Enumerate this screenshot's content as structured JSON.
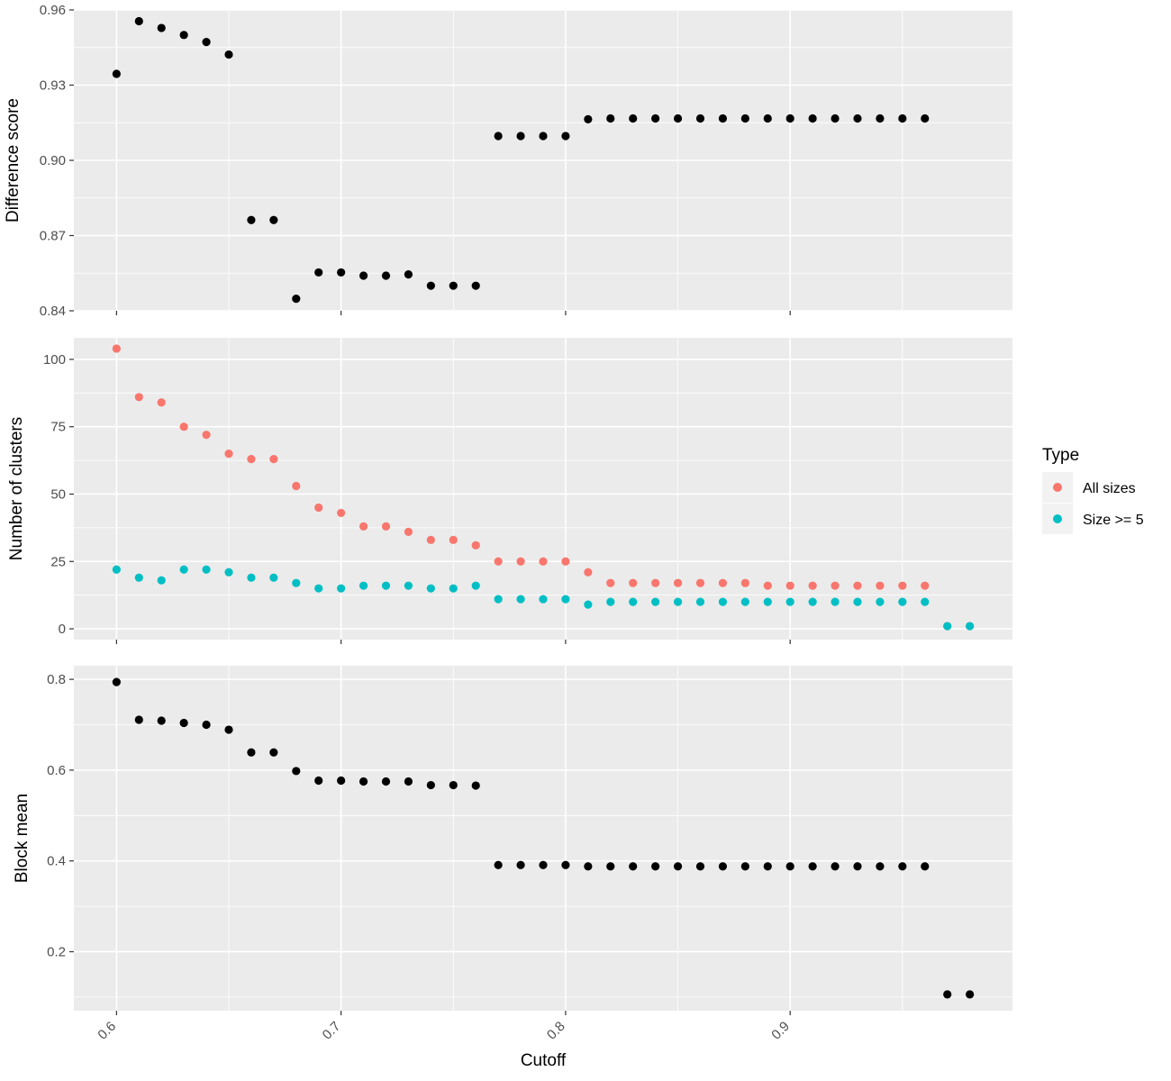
{
  "chart_data": [
    {
      "type": "scatter",
      "panel": "top",
      "ylabel": "Difference score",
      "ylim": [
        0.84,
        0.96
      ],
      "yticks": [
        0.84,
        0.87,
        0.9,
        0.93,
        0.96
      ],
      "ytick_labels": [
        "0.84",
        "0.87",
        "0.90",
        "0.93",
        "0.96"
      ],
      "series": [
        {
          "color": "#000000",
          "x": [
            0.6,
            0.61,
            0.62,
            0.63,
            0.64,
            0.65,
            0.66,
            0.67,
            0.68,
            0.69,
            0.7,
            0.71,
            0.72,
            0.73,
            0.74,
            0.75,
            0.76,
            0.77,
            0.78,
            0.79,
            0.8,
            0.81,
            0.82,
            0.83,
            0.84,
            0.85,
            0.86,
            0.87,
            0.88,
            0.89,
            0.9,
            0.91,
            0.92,
            0.93,
            0.94,
            0.95,
            0.96
          ],
          "y": [
            0.9345,
            0.9555,
            0.9528,
            0.95,
            0.9472,
            0.9422,
            0.8762,
            0.8762,
            0.8448,
            0.8553,
            0.8553,
            0.854,
            0.854,
            0.8545,
            0.85,
            0.85,
            0.85,
            0.9097,
            0.9097,
            0.9097,
            0.9097,
            0.9164,
            0.9167,
            0.9167,
            0.9167,
            0.9167,
            0.9167,
            0.9167,
            0.9167,
            0.9167,
            0.9167,
            0.9167,
            0.9167,
            0.9167,
            0.9167,
            0.9167,
            0.9167
          ]
        }
      ]
    },
    {
      "type": "scatter",
      "panel": "middle",
      "ylabel": "Number of clusters",
      "ylim": [
        -4,
        108
      ],
      "yticks": [
        0,
        25,
        50,
        75,
        100
      ],
      "ytick_labels": [
        "0",
        "25",
        "50",
        "75",
        "100"
      ],
      "legend": {
        "title": "Type",
        "position": "right"
      },
      "series": [
        {
          "name": "All sizes",
          "color": "#F8766D",
          "x": [
            0.6,
            0.61,
            0.62,
            0.63,
            0.64,
            0.65,
            0.66,
            0.67,
            0.68,
            0.69,
            0.7,
            0.71,
            0.72,
            0.73,
            0.74,
            0.75,
            0.76,
            0.77,
            0.78,
            0.79,
            0.8,
            0.81,
            0.82,
            0.83,
            0.84,
            0.85,
            0.86,
            0.87,
            0.88,
            0.89,
            0.9,
            0.91,
            0.92,
            0.93,
            0.94,
            0.95,
            0.96,
            0.97,
            0.98
          ],
          "y": [
            104,
            86,
            84,
            75,
            72,
            65,
            63,
            63,
            53,
            45,
            43,
            38,
            38,
            36,
            33,
            33,
            31,
            25,
            25,
            25,
            25,
            21,
            17,
            17,
            17,
            17,
            17,
            17,
            17,
            16,
            16,
            16,
            16,
            16,
            16,
            16,
            16,
            1,
            1
          ]
        },
        {
          "name": "Size >= 5",
          "color": "#00BFC4",
          "x": [
            0.6,
            0.61,
            0.62,
            0.63,
            0.64,
            0.65,
            0.66,
            0.67,
            0.68,
            0.69,
            0.7,
            0.71,
            0.72,
            0.73,
            0.74,
            0.75,
            0.76,
            0.77,
            0.78,
            0.79,
            0.8,
            0.81,
            0.82,
            0.83,
            0.84,
            0.85,
            0.86,
            0.87,
            0.88,
            0.89,
            0.9,
            0.91,
            0.92,
            0.93,
            0.94,
            0.95,
            0.96,
            0.97,
            0.98
          ],
          "y": [
            22,
            19,
            18,
            22,
            22,
            21,
            19,
            19,
            17,
            15,
            15,
            16,
            16,
            16,
            15,
            15,
            16,
            11,
            11,
            11,
            11,
            9,
            10,
            10,
            10,
            10,
            10,
            10,
            10,
            10,
            10,
            10,
            10,
            10,
            10,
            10,
            10,
            1,
            1
          ]
        }
      ]
    },
    {
      "type": "scatter",
      "panel": "bottom",
      "ylabel": "Block mean",
      "xlabel": "Cutoff",
      "ylim": [
        0.07,
        0.83
      ],
      "yticks": [
        0.2,
        0.4,
        0.6,
        0.8
      ],
      "ytick_labels": [
        "0.2",
        "0.4",
        "0.6",
        "0.8"
      ],
      "series": [
        {
          "color": "#000000",
          "x": [
            0.6,
            0.61,
            0.62,
            0.63,
            0.64,
            0.65,
            0.66,
            0.67,
            0.68,
            0.69,
            0.7,
            0.71,
            0.72,
            0.73,
            0.74,
            0.75,
            0.76,
            0.77,
            0.78,
            0.79,
            0.8,
            0.81,
            0.82,
            0.83,
            0.84,
            0.85,
            0.86,
            0.87,
            0.88,
            0.89,
            0.9,
            0.91,
            0.92,
            0.93,
            0.94,
            0.95,
            0.96,
            0.97,
            0.98
          ],
          "y": [
            0.794,
            0.711,
            0.709,
            0.704,
            0.7,
            0.689,
            0.639,
            0.639,
            0.598,
            0.577,
            0.577,
            0.575,
            0.575,
            0.575,
            0.567,
            0.567,
            0.566,
            0.391,
            0.391,
            0.391,
            0.391,
            0.388,
            0.388,
            0.388,
            0.388,
            0.388,
            0.388,
            0.388,
            0.388,
            0.388,
            0.388,
            0.388,
            0.388,
            0.388,
            0.388,
            0.388,
            0.388,
            0.106,
            0.106
          ]
        }
      ]
    }
  ],
  "x_axis": {
    "label": "Cutoff",
    "xlim": [
      0.581,
      0.999
    ],
    "ticks": [
      0.6,
      0.7,
      0.8,
      0.9
    ],
    "tick_labels": [
      "0.6",
      "0.7",
      "0.8",
      "0.9"
    ]
  },
  "legend": {
    "title": "Type",
    "entries": [
      {
        "label": "All sizes",
        "color": "#F8766D"
      },
      {
        "label": "Size >= 5",
        "color": "#00BFC4"
      }
    ]
  },
  "style": {
    "panel_background": "#EBEBEB",
    "grid_color": "#FFFFFF",
    "point_color": "#000000"
  }
}
